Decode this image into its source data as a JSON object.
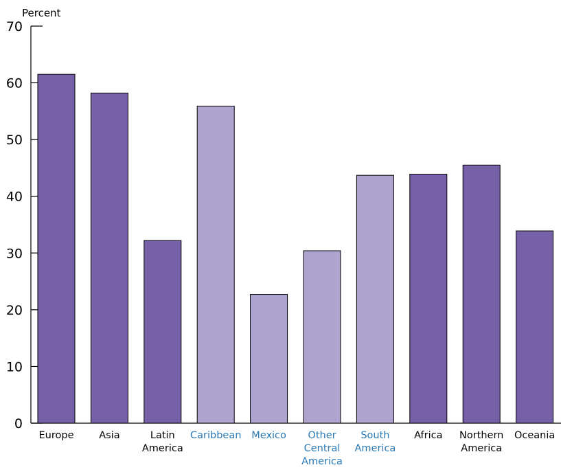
{
  "chart_data": {
    "type": "bar",
    "ylabel": "Percent",
    "ylim": [
      0,
      70
    ],
    "yticks": [
      0,
      10,
      20,
      30,
      40,
      50,
      60,
      70
    ],
    "grid": false,
    "categories": [
      [
        "Europe"
      ],
      [
        "Asia"
      ],
      [
        "Latin",
        "America"
      ],
      [
        "Caribbean"
      ],
      [
        "Mexico"
      ],
      [
        "Other",
        "Central",
        "America"
      ],
      [
        "South",
        "America"
      ],
      [
        "Africa"
      ],
      [
        "Northern",
        "America"
      ],
      [
        "Oceania"
      ]
    ],
    "values": [
      61.5,
      58.2,
      32.2,
      55.9,
      22.7,
      30.4,
      43.7,
      43.9,
      45.5,
      33.9
    ],
    "subregion": [
      false,
      false,
      false,
      true,
      true,
      true,
      true,
      false,
      false,
      false
    ]
  },
  "colors": {
    "region_bar": "#7660a8",
    "subregion_bar": "#afa3d0",
    "bar_outline": "#000000",
    "axis": "#000000",
    "label": "#000000",
    "subregion_label": "#2a78b4"
  }
}
